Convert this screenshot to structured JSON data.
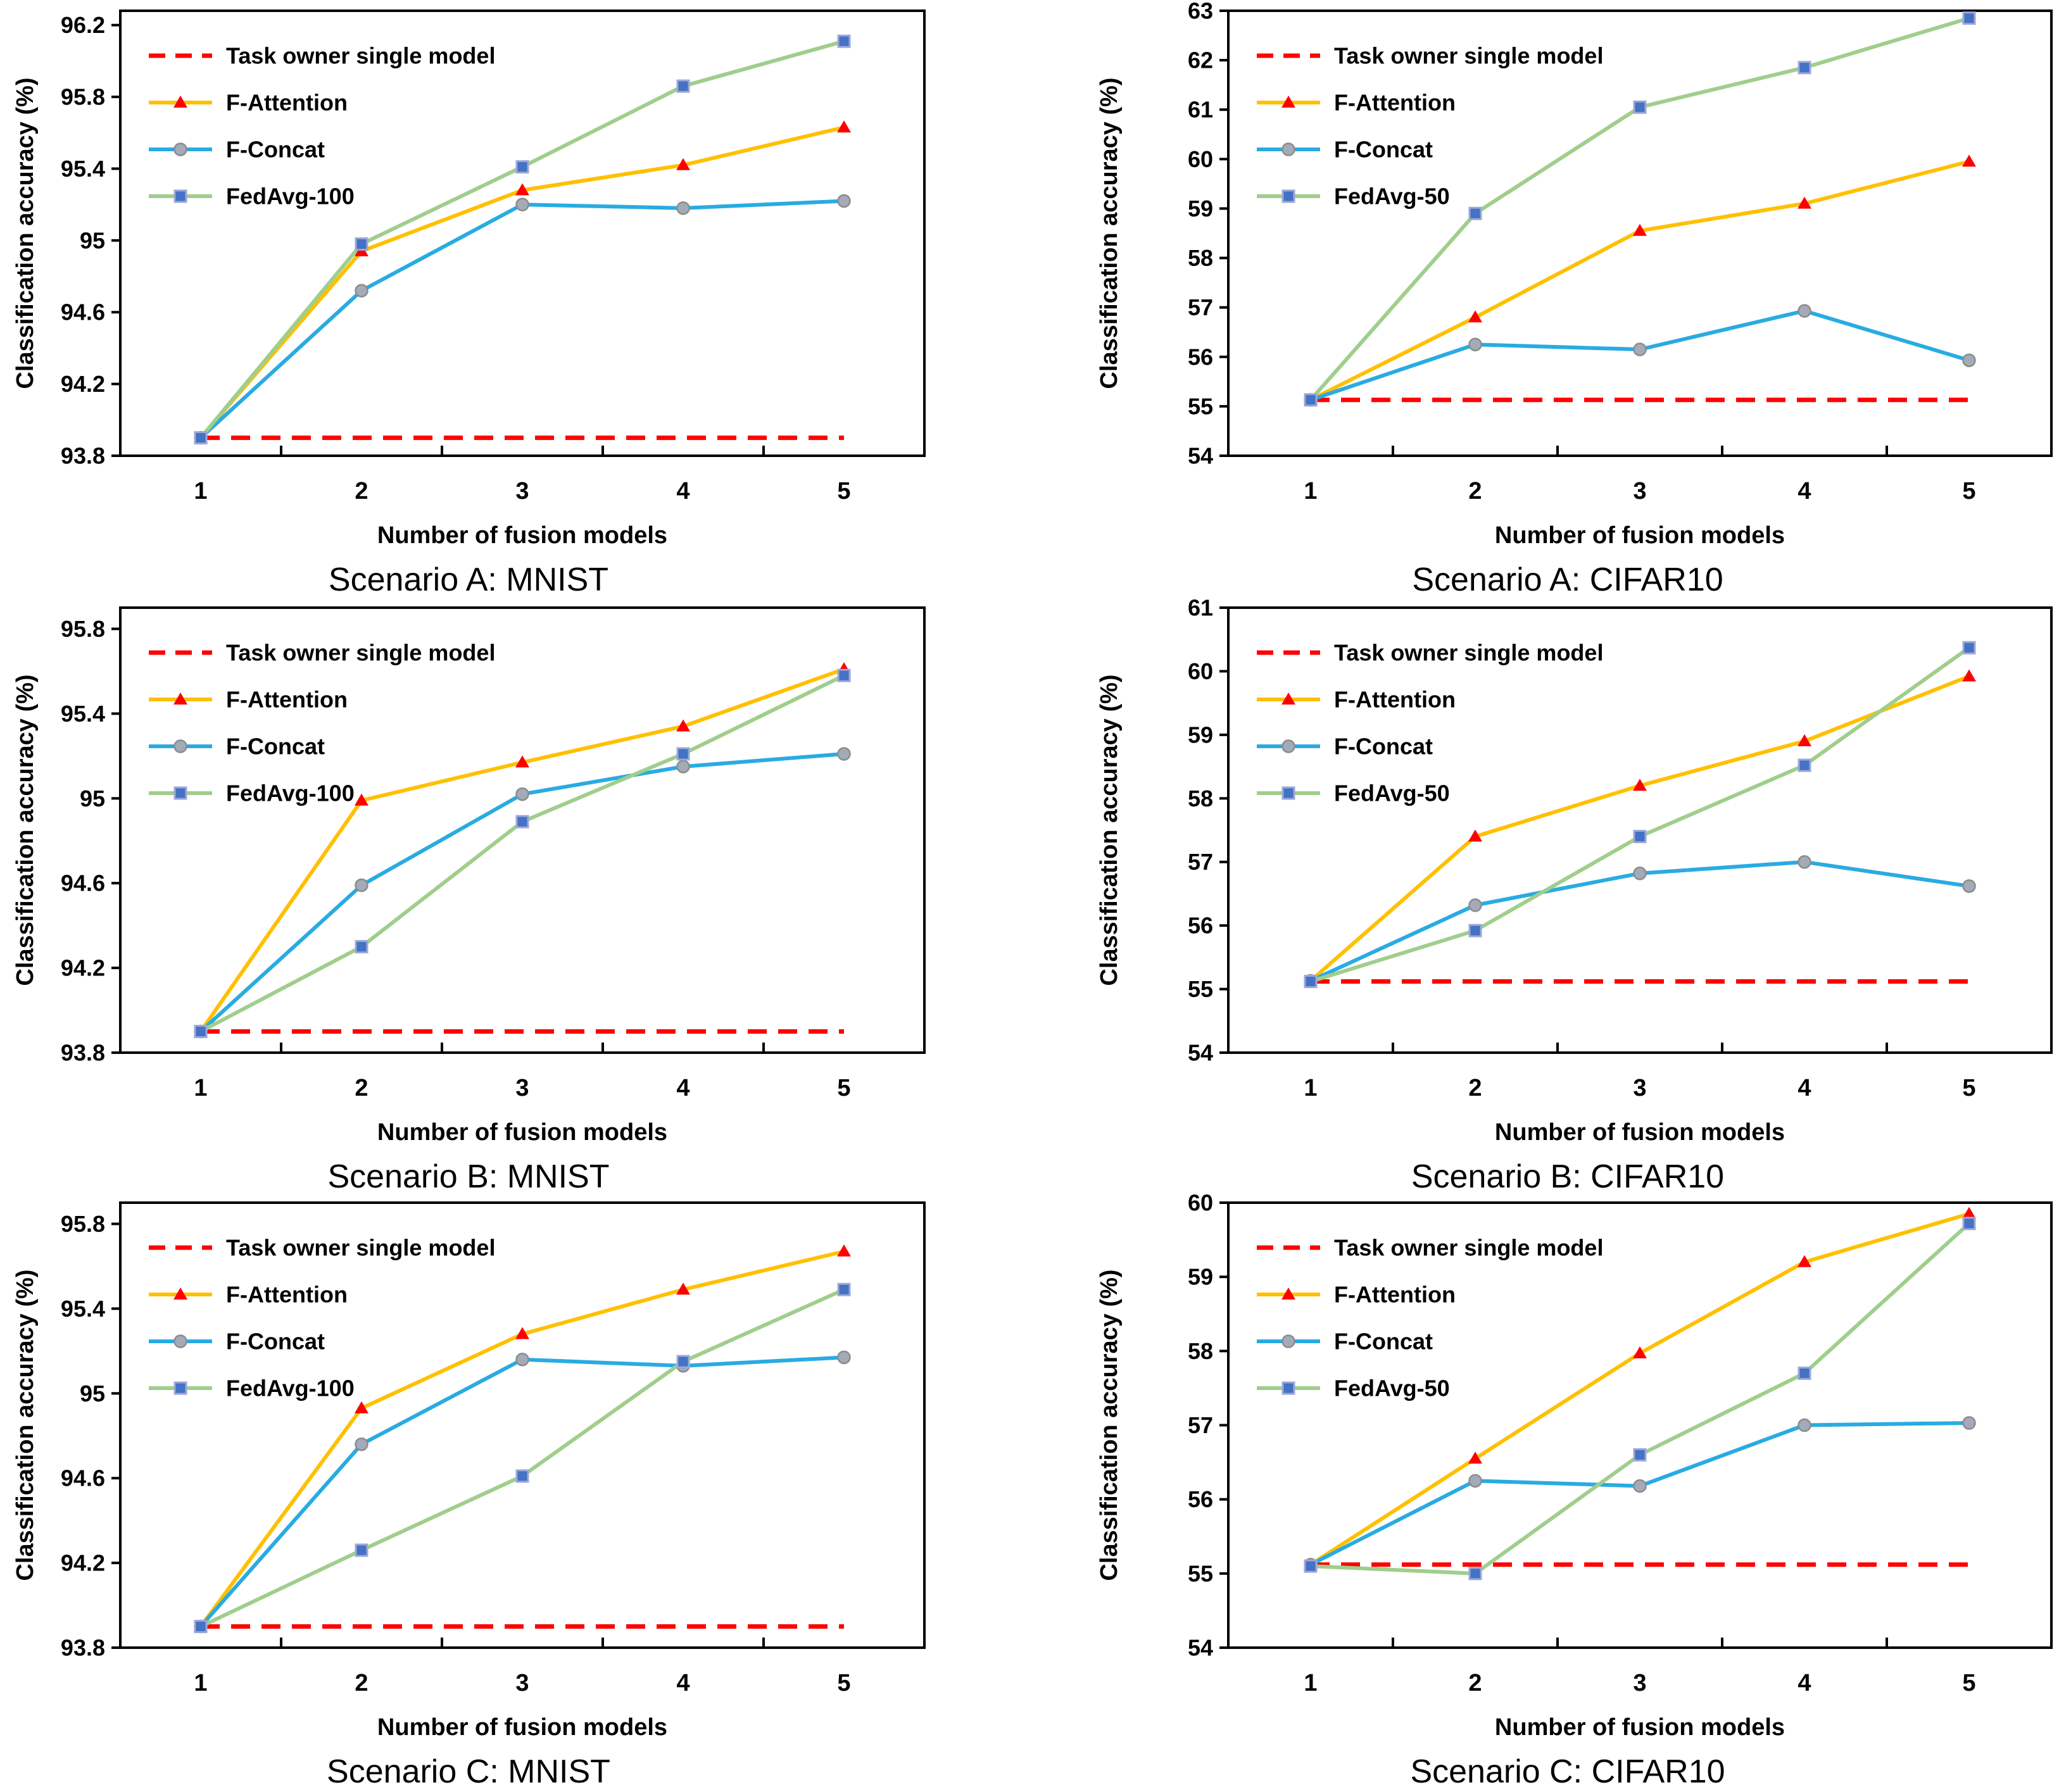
{
  "page": {
    "background": "#FFFFFF"
  },
  "colors": {
    "baseline_red": "#FF0000",
    "f_attention_line": "#FFC000",
    "f_attention_marker": "#FF0000",
    "f_concat_line": "#29ABE2",
    "f_concat_marker_fill": "#A3ABB8",
    "f_concat_marker_stroke": "#8C8C8C",
    "fedavg_line": "#A0CE8C",
    "fedavg_marker_fill": "#4472C4",
    "fedavg_marker_stroke": "#9DA7D9",
    "axis": "#000000",
    "text": "#000000"
  },
  "chart_data": [
    {
      "type": "line",
      "title": "Scenario A: MNIST",
      "xlabel": "Number of fusion models",
      "ylabel": "Classification accuracy  (%)",
      "x_ticks": [
        "1",
        "2",
        "3",
        "4",
        "5"
      ],
      "ylim": [
        93.8,
        96.28
      ],
      "yticks": [
        "93.8",
        "94.2",
        "94.6",
        "95",
        "95.4",
        "95.8",
        "96.2"
      ],
      "grid": false,
      "legend_position": "top-left",
      "baseline": {
        "label": "Task owner single model",
        "value": 93.9
      },
      "series": [
        {
          "name": "F-Attention",
          "marker": "triangle",
          "values": [
            93.9,
            94.94,
            95.28,
            95.42,
            95.63
          ]
        },
        {
          "name": "F-Concat",
          "marker": "circle",
          "values": [
            93.9,
            94.72,
            95.2,
            95.18,
            95.22
          ]
        },
        {
          "name": "FedAvg-100",
          "marker": "square",
          "values": [
            93.9,
            94.98,
            95.41,
            95.86,
            96.11
          ]
        }
      ]
    },
    {
      "type": "line",
      "title": "Scenario A: CIFAR10",
      "xlabel": "Number of fusion models",
      "ylabel": "Classification accuracy  (%)",
      "x_ticks": [
        "1",
        "2",
        "3",
        "4",
        "5"
      ],
      "ylim": [
        54,
        63
      ],
      "yticks": [
        "54",
        "55",
        "56",
        "57",
        "58",
        "59",
        "60",
        "61",
        "62",
        "63"
      ],
      "grid": false,
      "legend_position": "top-left",
      "baseline": {
        "label": "Task owner single model",
        "value": 55.13
      },
      "series": [
        {
          "name": "F-Attention",
          "marker": "triangle",
          "values": [
            55.13,
            56.8,
            58.55,
            59.1,
            59.95
          ]
        },
        {
          "name": "F-Concat",
          "marker": "circle",
          "values": [
            55.13,
            56.25,
            56.15,
            56.93,
            55.93
          ]
        },
        {
          "name": "FedAvg-50",
          "marker": "square",
          "values": [
            55.13,
            58.9,
            61.05,
            61.85,
            62.85
          ]
        }
      ]
    },
    {
      "type": "line",
      "title": "Scenario B: MNIST",
      "xlabel": "Number of fusion models",
      "ylabel": "Classification accuracy  (%)",
      "x_ticks": [
        "1",
        "2",
        "3",
        "4",
        "5"
      ],
      "ylim": [
        93.8,
        95.9
      ],
      "yticks": [
        "93.8",
        "94.2",
        "94.6",
        "95",
        "95.4",
        "95.8"
      ],
      "grid": false,
      "legend_position": "top-left",
      "baseline": {
        "label": "Task owner single model",
        "value": 93.9
      },
      "series": [
        {
          "name": "F-Attention",
          "marker": "triangle",
          "values": [
            93.9,
            94.99,
            95.17,
            95.34,
            95.61
          ]
        },
        {
          "name": "F-Concat",
          "marker": "circle",
          "values": [
            93.9,
            94.59,
            95.02,
            95.15,
            95.21
          ]
        },
        {
          "name": "FedAvg-100",
          "marker": "square",
          "values": [
            93.9,
            94.3,
            94.89,
            95.21,
            95.58
          ]
        }
      ]
    },
    {
      "type": "line",
      "title": "Scenario B: CIFAR10",
      "xlabel": "Number of fusion models",
      "ylabel": "Classification accuracy  (%)",
      "x_ticks": [
        "1",
        "2",
        "3",
        "4",
        "5"
      ],
      "ylim": [
        54,
        61
      ],
      "yticks": [
        "54",
        "55",
        "56",
        "57",
        "58",
        "59",
        "60",
        "61"
      ],
      "grid": false,
      "legend_position": "top-left",
      "baseline": {
        "label": "Task owner single model",
        "value": 55.12
      },
      "series": [
        {
          "name": "F-Attention",
          "marker": "triangle",
          "values": [
            55.13,
            57.4,
            58.2,
            58.9,
            59.92
          ]
        },
        {
          "name": "F-Concat",
          "marker": "circle",
          "values": [
            55.13,
            56.32,
            56.82,
            57.0,
            56.62
          ]
        },
        {
          "name": "FedAvg-50",
          "marker": "square",
          "values": [
            55.12,
            55.92,
            57.4,
            58.52,
            60.37
          ]
        }
      ]
    },
    {
      "type": "line",
      "title": "Scenario C: MNIST",
      "xlabel": "Number of fusion models",
      "ylabel": "Classification accuracy  (%)",
      "x_ticks": [
        "1",
        "2",
        "3",
        "4",
        "5"
      ],
      "ylim": [
        93.8,
        95.9
      ],
      "yticks": [
        "93.8",
        "94.2",
        "94.6",
        "95",
        "95.4",
        "95.8"
      ],
      "grid": false,
      "legend_position": "top-left",
      "baseline": {
        "label": "Task owner single model",
        "value": 93.9
      },
      "series": [
        {
          "name": "F-Attention",
          "marker": "triangle",
          "values": [
            93.9,
            94.93,
            95.28,
            95.49,
            95.67
          ]
        },
        {
          "name": "F-Concat",
          "marker": "circle",
          "values": [
            93.9,
            94.76,
            95.16,
            95.13,
            95.17
          ]
        },
        {
          "name": "FedAvg-100",
          "marker": "square",
          "values": [
            93.9,
            94.26,
            94.61,
            95.15,
            95.49
          ]
        }
      ]
    },
    {
      "type": "line",
      "title": "Scenario C: CIFAR10",
      "xlabel": "Number of fusion models",
      "ylabel": "Classification accuracy  (%)",
      "x_ticks": [
        "1",
        "2",
        "3",
        "4",
        "5"
      ],
      "ylim": [
        54,
        60
      ],
      "yticks": [
        "54",
        "55",
        "56",
        "57",
        "58",
        "59",
        "60"
      ],
      "grid": false,
      "legend_position": "top-left",
      "baseline": {
        "label": "Task owner single model",
        "value": 55.12
      },
      "series": [
        {
          "name": "F-Attention",
          "marker": "triangle",
          "values": [
            55.12,
            56.55,
            57.97,
            59.2,
            59.85
          ]
        },
        {
          "name": "F-Concat",
          "marker": "circle",
          "values": [
            55.12,
            56.25,
            56.18,
            57.0,
            57.03
          ]
        },
        {
          "name": "FedAvg-50",
          "marker": "square",
          "values": [
            55.1,
            55.0,
            56.6,
            57.7,
            59.72
          ]
        }
      ]
    }
  ]
}
